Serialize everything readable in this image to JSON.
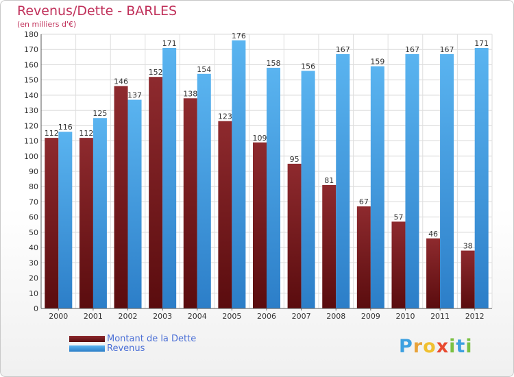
{
  "title": "Revenus/Dette - BARLES",
  "subtitle": "(en milliers d'€)",
  "chart_data": {
    "type": "bar",
    "categories": [
      "2000",
      "2001",
      "2002",
      "2003",
      "2004",
      "2005",
      "2006",
      "2007",
      "2008",
      "2009",
      "2010",
      "2011",
      "2012"
    ],
    "series": [
      {
        "name": "Montant de la Dette",
        "color": "#7a1a1e",
        "values": [
          112,
          112,
          146,
          152,
          138,
          123,
          109,
          95,
          81,
          67,
          57,
          46,
          38
        ]
      },
      {
        "name": "Revenus",
        "color": "#3d9fe2",
        "values": [
          116,
          125,
          137,
          171,
          154,
          176,
          158,
          156,
          167,
          159,
          167,
          167,
          171
        ]
      }
    ],
    "ylim": [
      0,
      180
    ],
    "ytick_step": 10,
    "grid": true,
    "legend_position": "bottom-left"
  },
  "logo": {
    "letters": [
      "P",
      "r",
      "o",
      "x",
      "i",
      "t",
      "i"
    ],
    "colors": [
      "#3da0e0",
      "#e8a23a",
      "#f0c030",
      "#e84a30",
      "#7ac043",
      "#3da0e0",
      "#7ac043"
    ]
  }
}
